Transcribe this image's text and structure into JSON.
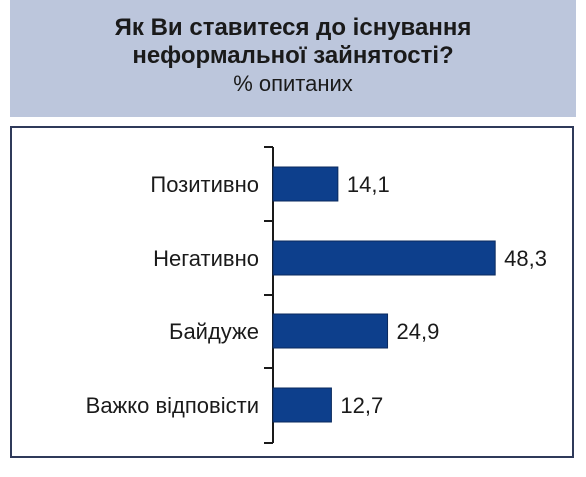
{
  "header": {
    "title_line1": "Як Ви ставитеся до існування",
    "title_line2": "неформальної зайнятості?",
    "subtitle": "% опитаних"
  },
  "colors": {
    "header_bg": "#bcc6dc",
    "bar": "#0d3f8c",
    "frame": "#2f3a5a"
  },
  "chart_data": {
    "type": "bar",
    "orientation": "horizontal",
    "title": "Як Ви ставитеся до існування неформальної зайнятості?",
    "subtitle": "% опитаних",
    "categories": [
      "Позитивно",
      "Негативно",
      "Байдуже",
      "Важко відповісти"
    ],
    "values": [
      14.1,
      48.3,
      24.9,
      12.7
    ],
    "value_labels": [
      "14,1",
      "48,3",
      "24,9",
      "12,7"
    ],
    "xlim": [
      0,
      50
    ],
    "grid": false,
    "legend": false
  }
}
